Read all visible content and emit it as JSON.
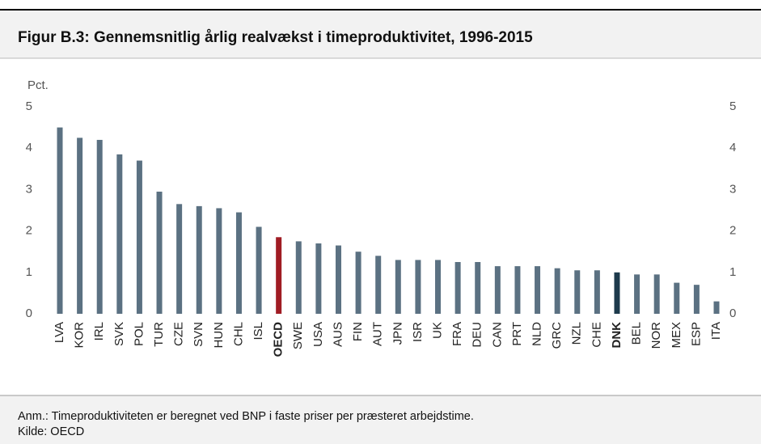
{
  "chart_data": {
    "type": "bar",
    "title": "Figur B.3: Gennemsnitlig årlig realvækst i timeproduktivitet, 1996-2015",
    "y_label": "Pct.",
    "categories": [
      "LVA",
      "KOR",
      "IRL",
      "SVK",
      "POL",
      "TUR",
      "CZE",
      "SVN",
      "HUN",
      "CHL",
      "ISL",
      "OECD",
      "SWE",
      "USA",
      "AUS",
      "FIN",
      "AUT",
      "JPN",
      "ISR",
      "UK",
      "FRA",
      "DEU",
      "CAN",
      "PRT",
      "NLD",
      "GRC",
      "NZL",
      "CHE",
      "DNK",
      "BEL",
      "NOR",
      "MEX",
      "ESP",
      "ITA"
    ],
    "values": [
      4.5,
      4.25,
      4.2,
      3.85,
      3.7,
      2.95,
      2.65,
      2.6,
      2.55,
      2.45,
      2.1,
      1.85,
      1.75,
      1.7,
      1.65,
      1.5,
      1.4,
      1.3,
      1.3,
      1.3,
      1.25,
      1.25,
      1.15,
      1.15,
      1.15,
      1.1,
      1.05,
      1.05,
      1.0,
      0.95,
      0.95,
      0.75,
      0.7,
      0.3
    ],
    "colors": [
      "#5b7182",
      "#5b7182",
      "#5b7182",
      "#5b7182",
      "#5b7182",
      "#5b7182",
      "#5b7182",
      "#5b7182",
      "#5b7182",
      "#5b7182",
      "#5b7182",
      "#a01c24",
      "#5b7182",
      "#5b7182",
      "#5b7182",
      "#5b7182",
      "#5b7182",
      "#5b7182",
      "#5b7182",
      "#5b7182",
      "#5b7182",
      "#5b7182",
      "#5b7182",
      "#5b7182",
      "#5b7182",
      "#5b7182",
      "#5b7182",
      "#5b7182",
      "#1d3a4c",
      "#5b7182",
      "#5b7182",
      "#5b7182",
      "#5b7182",
      "#5b7182"
    ],
    "ylim": [
      0,
      5
    ],
    "yticks": [
      0,
      1,
      2,
      3,
      4,
      5
    ],
    "y2ticks": [
      0,
      1,
      2,
      3,
      4,
      5
    ],
    "notes": [
      "Anm.: Timeproduktiviteten er beregnet ved BNP i faste priser per præsteret arbejdstime.",
      "Kilde: OECD"
    ]
  }
}
